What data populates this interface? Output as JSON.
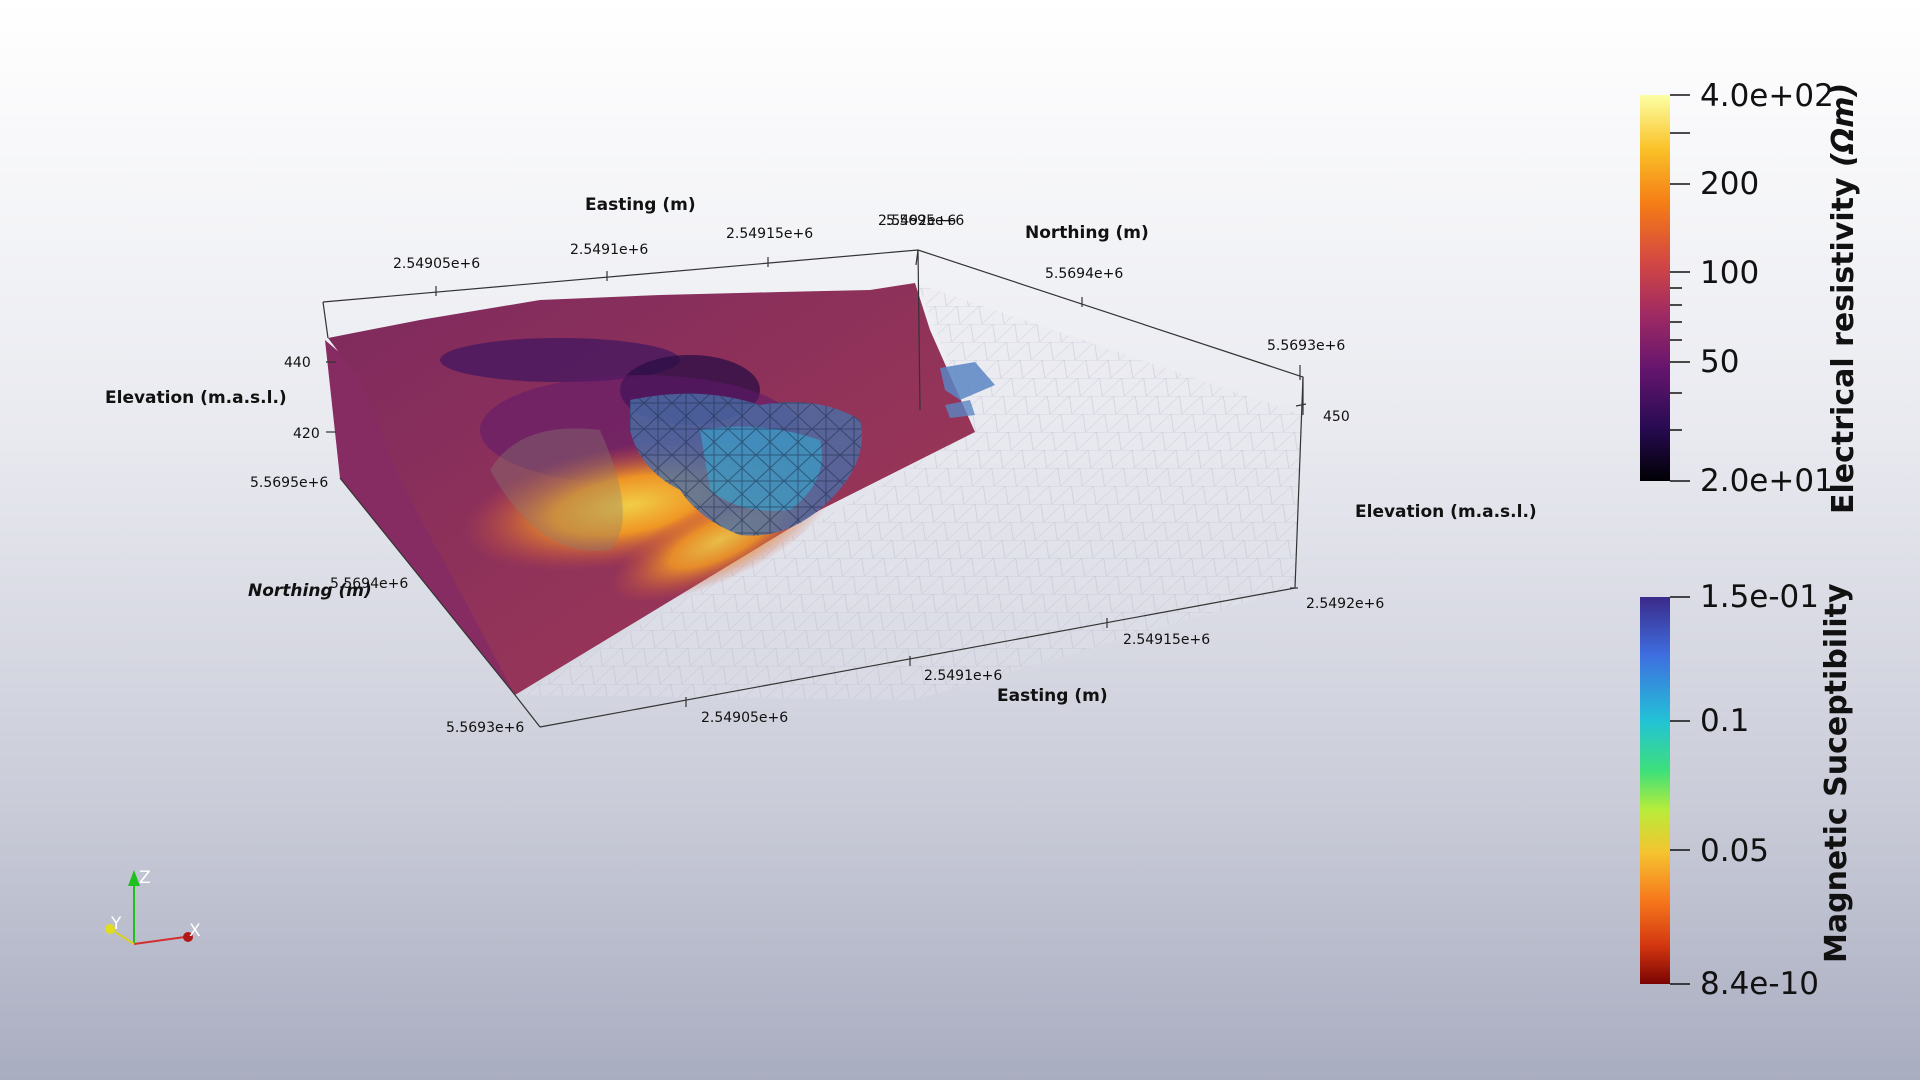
{
  "axes": {
    "top_easting_title": "Easting (m)",
    "top_easting_ticks": [
      "2.54905e+6",
      "2.5491e+6",
      "2.54915e+6",
      "2.5492e+6"
    ],
    "top_corner_overlap_label": "5.5695e+6",
    "top_northing_title": "Northing (m)",
    "top_northing_ticks": [
      "5.5694e+6",
      "5.5693e+6"
    ],
    "left_elevation_title": "Elevation (m.a.s.l.)",
    "left_elevation_ticks": [
      "440",
      "420"
    ],
    "left_northing_ticks": [
      "5.5695e+6",
      "5.5694e+6",
      "5.5693e+6"
    ],
    "left_northing_title": "Northing (m)",
    "right_elevation_tick": "450",
    "right_elevation_title": "Elevation (m.a.s.l.)",
    "bottom_easting_ticks": [
      "2.5492e+6",
      "2.54915e+6",
      "2.5491e+6",
      "2.54905e+6"
    ],
    "bottom_easting_title": "Easting (m)"
  },
  "colorbars": {
    "resistivity": {
      "title": "Electrical resistivity",
      "unit": "(Ωm)",
      "ticks": [
        "4.0e+02",
        "200",
        "100",
        "50",
        "2.0e+01"
      ],
      "scale": "log",
      "colors": [
        "#fcffa4",
        "#fac228",
        "#f57d15",
        "#d44842",
        "#9f2a63",
        "#65156e",
        "#280b53",
        "#000004"
      ]
    },
    "susceptibility": {
      "title": "Magnetic Suceptibility",
      "ticks": [
        "1.5e-01",
        "0.1",
        "0.05",
        "8.4e-10"
      ],
      "colors": [
        "#3b2a8a",
        "#3f6ee0",
        "#22c2d6",
        "#3ee07a",
        "#b8ec3a",
        "#f5c430",
        "#f77a1c",
        "#d43710",
        "#7a0403"
      ]
    }
  },
  "orientation_axes": {
    "x": "X",
    "y": "Y",
    "z": "Z"
  }
}
